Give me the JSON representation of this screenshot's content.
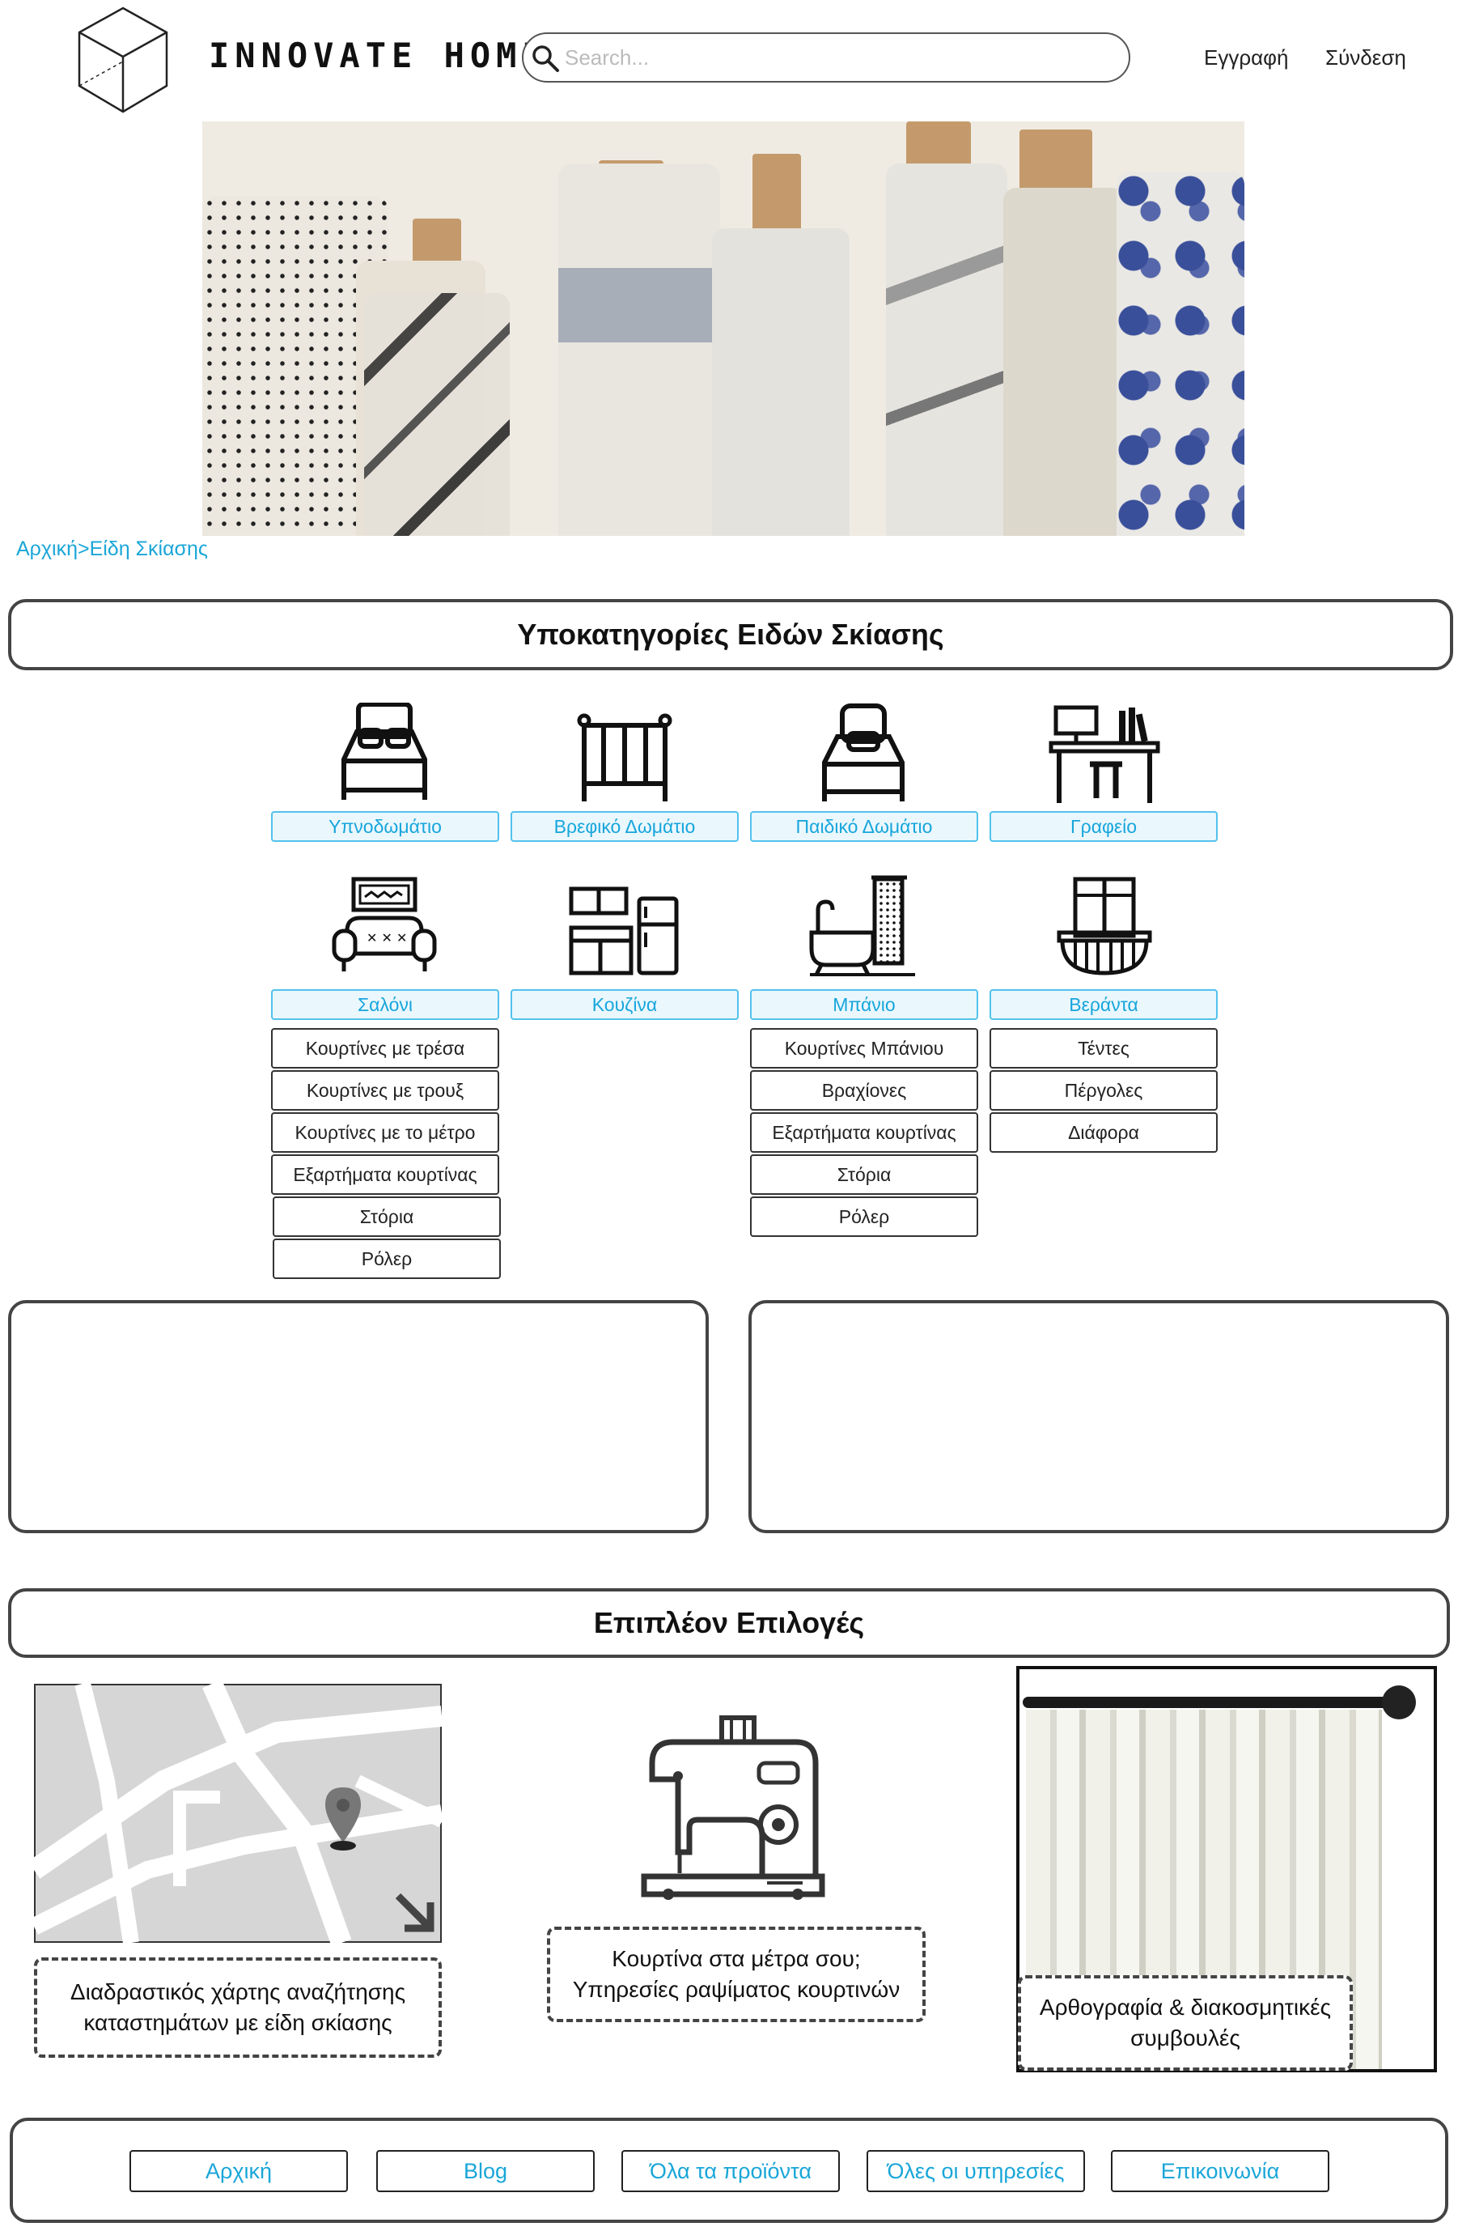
{
  "header": {
    "brand": "INNOVATE HOME",
    "search_placeholder": "Search...",
    "register_link": "Εγγραφή",
    "login_link": "Σύνδεση"
  },
  "breadcrumb": "Αρχική>Είδη Σκίασης",
  "subcategories": {
    "title": "Υποκατηγορίες Ειδών Σκίασης",
    "items": [
      {
        "label": "Υπνοδωμάτιο",
        "icon": "double-bed-icon"
      },
      {
        "label": "Βρεφικό Δωμάτιο",
        "icon": "crib-icon"
      },
      {
        "label": "Παιδικό Δωμάτιο",
        "icon": "single-bed-icon"
      },
      {
        "label": "Γραφείο",
        "icon": "office-desk-icon"
      },
      {
        "label": "Σαλόνι",
        "icon": "sofa-icon"
      },
      {
        "label": "Κουζίνα",
        "icon": "kitchen-icon"
      },
      {
        "label": "Μπάνιο",
        "icon": "bathtub-icon"
      },
      {
        "label": "Βεράντα",
        "icon": "balcony-icon"
      }
    ],
    "saloni_options": [
      "Κουρτίνες με τρέσα",
      "Κουρτίνες με τρουξ",
      "Κουρτίνες με το μέτρο",
      "Εξαρτήματα κουρτίνας",
      "Στόρια",
      "Ρόλερ"
    ],
    "mpanio_options": [
      "Κουρτίνες Μπάνιου",
      "Βραχίονες",
      "Εξαρτήματα κουρτίνας",
      "Στόρια",
      "Ρόλερ"
    ],
    "veranta_options": [
      "Τέντες",
      "Πέργολες",
      "Διάφορα"
    ]
  },
  "more_options": {
    "title": "Επιπλέον Επιλογές",
    "map_caption": "Διαδραστικός χάρτης αναζήτησης καταστημάτων με είδη σκίασης",
    "sewing_caption": "Κουρτίνα στα μέτρα σου; Υπηρεσίες ραψίματος κουρτινών",
    "article_caption": "Αρθογραφία & διακοσμητικές συμβουλές"
  },
  "footer": {
    "links": [
      "Αρχική",
      "Blog",
      "Όλα τα προϊόντα",
      "Όλες οι υπηρεσίες",
      "Επικοινωνία"
    ]
  },
  "colors": {
    "accent": "#1aa6d8",
    "border": "#444444",
    "label_bg": "#eaf7fd"
  }
}
